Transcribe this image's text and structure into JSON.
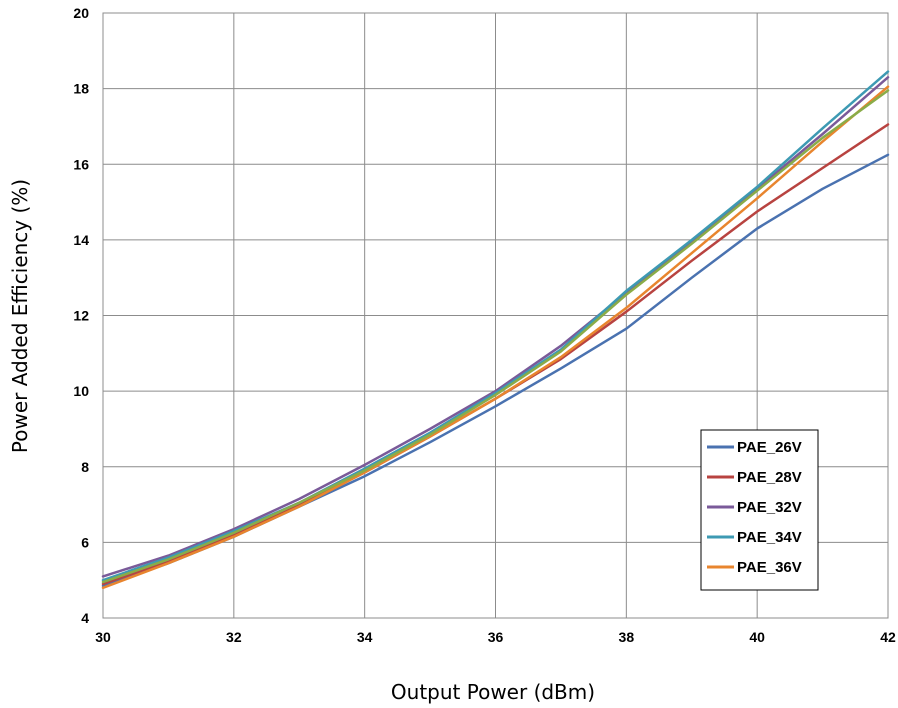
{
  "chart_data": {
    "type": "line",
    "xlabel": "Output Power (dBm)",
    "ylabel": "Power Added Efficiency (%)",
    "xlim": [
      30,
      42
    ],
    "ylim": [
      4,
      20
    ],
    "xticks": [
      "30",
      "32",
      "34",
      "36",
      "38",
      "40",
      "42"
    ],
    "yticks": [
      "4",
      "6",
      "8",
      "10",
      "12",
      "14",
      "16",
      "18",
      "20"
    ],
    "grid": true,
    "legend_position": "bottom-right",
    "x": [
      30,
      31,
      32,
      33,
      34,
      35,
      36,
      37,
      38,
      39,
      40,
      41,
      42
    ],
    "series": [
      {
        "name": "PAE_26V",
        "color": "#4a72b0",
        "values": [
          4.85,
          5.45,
          6.15,
          6.95,
          7.75,
          8.65,
          9.6,
          10.6,
          11.65,
          13.0,
          14.3,
          15.35,
          16.25
        ]
      },
      {
        "name": "PAE_28V",
        "color": "#b84340",
        "values": [
          4.9,
          5.5,
          6.2,
          7.0,
          7.85,
          8.8,
          9.8,
          10.85,
          12.1,
          13.45,
          14.75,
          15.9,
          17.05
        ]
      },
      {
        "name": "PAE_32V",
        "color": "#7a5a99",
        "values": [
          5.1,
          5.65,
          6.35,
          7.15,
          8.05,
          9.0,
          10.0,
          11.2,
          12.6,
          13.95,
          15.35,
          16.8,
          18.3
        ]
      },
      {
        "name": "PAE_34V",
        "color": "#3d9ab3",
        "values": [
          5.0,
          5.6,
          6.3,
          7.05,
          7.95,
          8.9,
          9.95,
          11.1,
          12.65,
          14.0,
          15.4,
          16.95,
          18.45
        ]
      },
      {
        "name": "PAE_36V",
        "color": "#e8852e",
        "values": [
          4.8,
          5.45,
          6.15,
          6.95,
          7.85,
          8.8,
          9.8,
          10.9,
          12.2,
          13.65,
          15.1,
          16.6,
          18.05
        ]
      },
      {
        "name": "",
        "color": "#8aac48",
        "values": [
          4.95,
          5.55,
          6.25,
          7.05,
          7.9,
          8.85,
          9.9,
          11.05,
          12.55,
          13.9,
          15.3,
          16.7,
          17.95
        ]
      }
    ]
  }
}
